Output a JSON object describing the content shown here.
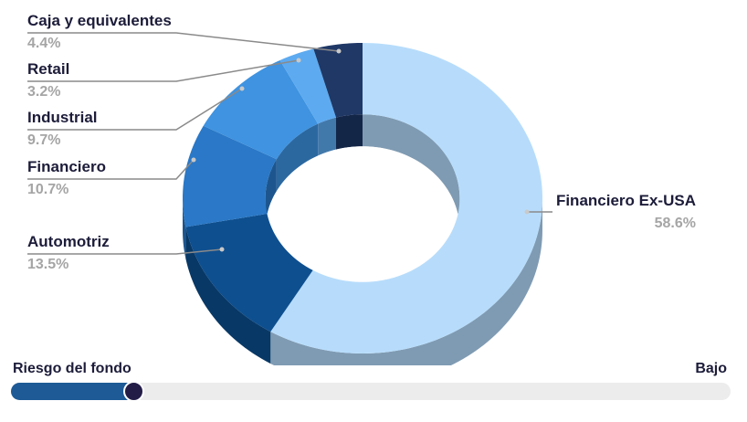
{
  "chart_data": {
    "type": "pie",
    "slices": [
      {
        "label": "Financiero Ex-USA",
        "value_text": "58.6%",
        "value": 58.6,
        "color": "#b7dcfb",
        "side": "#7f9bb3"
      },
      {
        "label": "Automotriz",
        "value_text": "13.5%",
        "value": 13.5,
        "color": "#0e4f8f",
        "side": "#083866"
      },
      {
        "label": "Financiero",
        "value_text": "10.7%",
        "value": 10.7,
        "color": "#2a78c7",
        "side": "#1d568e"
      },
      {
        "label": "Industrial",
        "value_text": "9.7%",
        "value": 9.7,
        "color": "#3f93e0",
        "side": "#2c68a0"
      },
      {
        "label": "Retail",
        "value_text": "3.2%",
        "value": 3.2,
        "color": "#5daaf0",
        "side": "#4279ab"
      },
      {
        "label": "Caja y equivalentes",
        "value_text": "4.4%",
        "value": 4.4,
        "color": "#1f3866",
        "side": "#142648"
      }
    ]
  },
  "risk": {
    "title": "Riesgo del fondo",
    "level_label": "Bajo",
    "level_fraction": 0.17,
    "fill_color": "#1d5a96",
    "knob_color": "#231c47"
  }
}
